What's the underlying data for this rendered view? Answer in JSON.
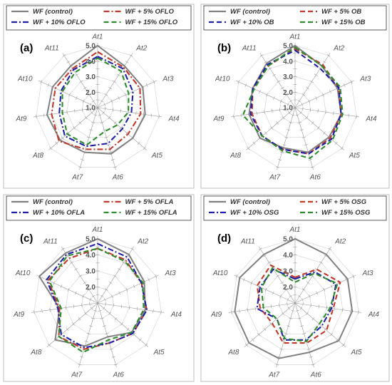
{
  "chart_data": [
    {
      "type": "radar",
      "panel_label": "(a)",
      "categories": [
        "At1",
        "At2",
        "At3",
        "At4",
        "At5",
        "At6",
        "At7",
        "At8",
        "At9",
        "At10",
        "At11"
      ],
      "rlim": [
        1.0,
        5.0
      ],
      "tick_labels": [
        "1.0",
        "2.0",
        "3.0",
        "4.0",
        "5.0"
      ],
      "legend_placement": "top",
      "series": [
        {
          "name": "WF (control)",
          "color": "#808080",
          "dash": "solid",
          "values": [
            5.0,
            4.2,
            4.2,
            4.1,
            4.0,
            4.1,
            4.0,
            4.2,
            4.3,
            4.2,
            4.2
          ]
        },
        {
          "name": "WF + 5% OFLO",
          "color": "#c0392b",
          "dash": "dashdot",
          "values": [
            4.6,
            4.1,
            4.0,
            3.8,
            3.6,
            3.8,
            3.8,
            4.3,
            4.0,
            4.0,
            4.0
          ]
        },
        {
          "name": "WF + 10% OFLO",
          "color": "#1f1fa8",
          "dash": "dashdot",
          "values": [
            4.3,
            4.0,
            3.5,
            3.2,
            3.1,
            3.4,
            3.6,
            3.8,
            3.5,
            3.6,
            3.9
          ]
        },
        {
          "name": "WF + 15% OFLO",
          "color": "#2e8b2e",
          "dash": "dash",
          "values": [
            4.2,
            3.8,
            3.2,
            3.0,
            2.7,
            2.6,
            3.5,
            3.6,
            3.3,
            3.5,
            3.7
          ]
        }
      ]
    },
    {
      "type": "radar",
      "panel_label": "(b)",
      "categories": [
        "At1",
        "At2",
        "At3",
        "At4",
        "At5",
        "At6",
        "At7",
        "At8",
        "At9",
        "At10",
        "At11"
      ],
      "rlim": [
        1.0,
        5.0
      ],
      "tick_labels": [
        "1.0",
        "2.0",
        "3.0",
        "4.0",
        "5.0"
      ],
      "legend_placement": "top",
      "series": [
        {
          "name": "WF (control)",
          "color": "#808080",
          "dash": "solid",
          "values": [
            5.0,
            4.2,
            4.0,
            4.0,
            3.9,
            4.0,
            3.7,
            4.0,
            4.0,
            4.0,
            4.4
          ]
        },
        {
          "name": "WF + 5% OB",
          "color": "#c0392b",
          "dash": "dash",
          "values": [
            4.8,
            4.3,
            4.1,
            4.0,
            4.0,
            4.1,
            3.8,
            3.8,
            3.8,
            4.0,
            4.2
          ]
        },
        {
          "name": "WF + 10% OB",
          "color": "#1f1fa8",
          "dash": "dash",
          "values": [
            4.7,
            4.0,
            4.1,
            4.0,
            4.1,
            4.1,
            3.8,
            3.8,
            3.9,
            4.0,
            4.3
          ]
        },
        {
          "name": "WF + 15% OB",
          "color": "#2e8b2e",
          "dash": "dash",
          "values": [
            4.9,
            4.2,
            4.2,
            4.1,
            4.2,
            4.4,
            3.9,
            3.8,
            4.4,
            3.9,
            4.2
          ]
        }
      ]
    },
    {
      "type": "radar",
      "panel_label": "(c)",
      "categories": [
        "At1",
        "At2",
        "At3",
        "At4",
        "At5",
        "At6",
        "At7",
        "At8",
        "At9",
        "At10",
        "At11"
      ],
      "rlim": [
        1.0,
        5.0
      ],
      "tick_labels": [
        "2.0",
        "3.0",
        "4.0",
        "5.0"
      ],
      "legend_placement": "top",
      "series": [
        {
          "name": "WF (control)",
          "color": "#808080",
          "dash": "solid",
          "values": [
            5.0,
            4.6,
            4.2,
            4.0,
            3.8,
            3.2,
            3.8,
            4.5,
            3.4,
            5.0,
            4.7
          ]
        },
        {
          "name": "WF + 5% OFLA",
          "color": "#c0392b",
          "dash": "dashdot",
          "values": [
            4.4,
            4.2,
            4.0,
            4.1,
            3.9,
            3.6,
            4.0,
            4.2,
            3.4,
            4.4,
            4.3
          ]
        },
        {
          "name": "WF + 10% OFLA",
          "color": "#1f1fa8",
          "dash": "dashdot",
          "values": [
            4.7,
            4.4,
            4.0,
            4.1,
            3.9,
            3.6,
            3.9,
            4.0,
            3.5,
            4.5,
            4.6
          ]
        },
        {
          "name": "WF + 15% OFLA",
          "color": "#2e8b2e",
          "dash": "dash",
          "values": [
            4.4,
            4.1,
            4.1,
            3.9,
            3.8,
            3.4,
            4.2,
            4.2,
            3.3,
            4.3,
            4.5
          ]
        }
      ]
    },
    {
      "type": "radar",
      "panel_label": "(d)",
      "categories": [
        "At1",
        "At2",
        "At3",
        "At4",
        "At5",
        "At6",
        "At7",
        "At8",
        "At9",
        "At10",
        "At11"
      ],
      "rlim": [
        1.0,
        5.0
      ],
      "tick_labels": [
        "2.0",
        "3.0",
        "4.0",
        "5.0"
      ],
      "legend_placement": "top",
      "series": [
        {
          "name": "WF (control)",
          "color": "#808080",
          "dash": "solid",
          "values": [
            5.0,
            4.6,
            4.6,
            4.6,
            4.6,
            4.2,
            4.6,
            4.8,
            4.8,
            4.8,
            4.6
          ]
        },
        {
          "name": "WF + 5% OSG",
          "color": "#c0392b",
          "dash": "dash",
          "values": [
            2.6,
            3.5,
            4.1,
            3.4,
            3.6,
            3.6,
            3.6,
            2.9,
            3.2,
            3.6,
            3.8
          ]
        },
        {
          "name": "WF + 10% OSG",
          "color": "#1f1fa8",
          "dash": "dashdot",
          "values": [
            2.5,
            3.3,
            3.8,
            3.3,
            3.2,
            3.4,
            3.4,
            2.5,
            3.4,
            3.4,
            3.5
          ]
        },
        {
          "name": "WF + 15% OSG",
          "color": "#2e8b2e",
          "dash": "dash",
          "values": [
            2.3,
            3.2,
            3.9,
            3.2,
            3.0,
            3.5,
            3.3,
            2.5,
            3.0,
            3.3,
            3.6
          ]
        }
      ]
    }
  ]
}
